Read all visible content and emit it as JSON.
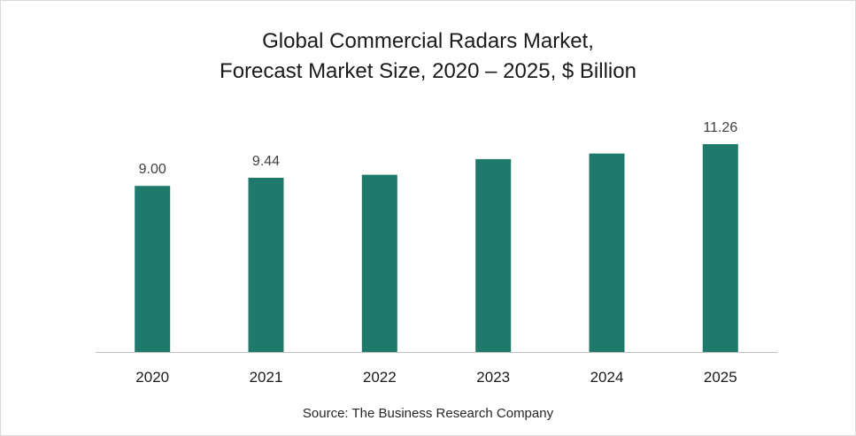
{
  "chart_data": {
    "type": "bar",
    "title": [
      "Global Commercial Radars Market,",
      "Forecast Market Size, 2020 – 2025, $ Billion"
    ],
    "categories": [
      "2020",
      "2021",
      "2022",
      "2023",
      "2024",
      "2025"
    ],
    "values": [
      9.0,
      9.44,
      9.6,
      10.45,
      10.75,
      11.26
    ],
    "data_labels": [
      "9.00",
      "9.44",
      "",
      "",
      "",
      "11.26"
    ],
    "xlabel": "",
    "ylabel": "",
    "ylim": [
      0,
      11.26
    ],
    "grid": false,
    "legend": "none",
    "colors": {
      "bar": "#1f7a6c",
      "axis": "#bfbfbf",
      "label": "#404040"
    }
  },
  "source": "Source: The Business Research Company"
}
